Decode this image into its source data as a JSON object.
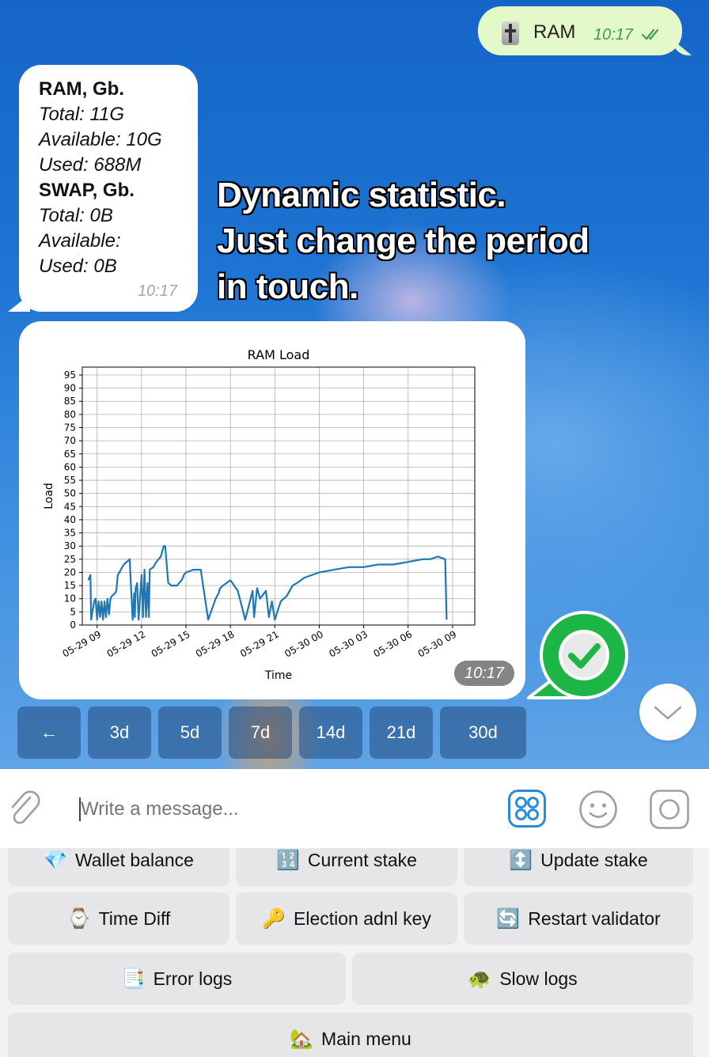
{
  "colors": {
    "accent": "#2a8cd9",
    "outgoing_bubble": "#e3f9c9",
    "read_ticks": "#3aa14a",
    "series": "#1f77b4"
  },
  "outgoing": {
    "icon": "fader-icon",
    "text": "RAM",
    "time": "10:17"
  },
  "incoming": {
    "lines": [
      {
        "text": "RAM, Gb.",
        "style": "bold"
      },
      {
        "text": "Total: 11G",
        "style": "italic"
      },
      {
        "text": "Available: 10G",
        "style": "italic"
      },
      {
        "text": "Used: 688M",
        "style": "italic"
      },
      {
        "text": "SWAP, Gb.",
        "style": "bold"
      },
      {
        "text": "Total: 0B",
        "style": "italic"
      },
      {
        "text": "Available:",
        "style": "italic"
      },
      {
        "text": "Used: 0B",
        "style": "italic"
      }
    ],
    "time": "10:17"
  },
  "overlay_caption": [
    "Dynamic statistic.",
    "Just change the period",
    "in touch."
  ],
  "image_time": "10:17",
  "chart_data": {
    "type": "line",
    "title": "RAM Load",
    "xlabel": "Time",
    "ylabel": "Load",
    "ylim": [
      0,
      98
    ],
    "yticks": [
      0,
      5,
      10,
      15,
      20,
      25,
      30,
      35,
      40,
      45,
      50,
      55,
      60,
      65,
      70,
      75,
      80,
      85,
      90,
      95
    ],
    "xticks": [
      "05-29 09",
      "05-29 12",
      "05-29 15",
      "05-29 18",
      "05-29 21",
      "05-30 00",
      "05-30 03",
      "05-30 06",
      "05-30 09"
    ],
    "xlim_hours": [
      -1,
      25.5
    ],
    "grid": true,
    "series": [
      {
        "x_hours_from_05-29_09": [
          -0.6,
          -0.45,
          -0.4,
          -0.2,
          -0.1,
          0,
          0.1,
          0.2,
          0.3,
          0.4,
          0.5,
          0.6,
          0.7,
          0.8,
          0.9,
          1.0,
          1.2,
          1.3,
          1.4,
          1.6,
          1.8,
          2.0,
          2.2,
          2.4,
          2.5,
          2.55,
          2.6,
          2.7,
          2.8,
          3.0,
          3.1,
          3.2,
          3.3,
          3.4,
          3.5,
          3.55,
          3.8,
          3.9,
          4.0,
          4.3,
          4.4,
          4.5,
          4.6,
          4.8,
          5.0,
          5.4,
          5.7,
          5.8,
          5.85,
          6.0,
          6.5,
          7.0,
          7.5,
          8.0,
          8.2,
          8.3,
          8.5,
          9.0,
          9.5,
          10.0,
          10.5,
          10.6,
          10.8,
          11.0,
          11.4,
          11.6,
          11.8,
          12.0,
          12.4,
          12.6,
          12.8,
          13.0,
          13.2,
          13.5,
          14.0,
          15.0,
          16.0,
          17.0,
          18.0,
          19.0,
          20.0,
          21.0,
          22.0,
          22.5,
          23.0,
          23.5,
          23.6
        ],
        "y": [
          17,
          19,
          2,
          9,
          10,
          2,
          9,
          3,
          9,
          2,
          9,
          3,
          10,
          4,
          10,
          11,
          12,
          13,
          19,
          21,
          23,
          24,
          25,
          2,
          12,
          3,
          14,
          16,
          2,
          19,
          3,
          21,
          3,
          16,
          3,
          21,
          22,
          23,
          24,
          26,
          28,
          30,
          30,
          16,
          15,
          15,
          17,
          18,
          19,
          20,
          21,
          21,
          2,
          10,
          12,
          14,
          15,
          17,
          13,
          2,
          13,
          3,
          14,
          10,
          13,
          3,
          9,
          2,
          9,
          10,
          11,
          13,
          15,
          16,
          18,
          20,
          21,
          22,
          22,
          23,
          23,
          24,
          25,
          25,
          26,
          25,
          2
        ]
      }
    ]
  },
  "period_buttons": [
    "←",
    "3d",
    "5d",
    "7d",
    "14d",
    "21d",
    "30d"
  ],
  "composer": {
    "placeholder": "Write a message...",
    "attach_icon": "paperclip-icon",
    "apps_icon": "apps-grid-icon",
    "emoji_icon": "smiley-icon",
    "camera_icon": "round-camera-icon"
  },
  "reply_keyboard": [
    {
      "emoji": "💎",
      "label": "Wallet balance"
    },
    {
      "emoji": "🔢",
      "label": "Current stake"
    },
    {
      "emoji": "↕️",
      "label": "Update stake"
    },
    {
      "emoji": "⌚",
      "label": "Time Diff"
    },
    {
      "emoji": "🔑",
      "label": "Election adnl key"
    },
    {
      "emoji": "🔄",
      "label": "Restart validator"
    },
    {
      "emoji": "📑",
      "label": "Error logs"
    },
    {
      "emoji": "🐢",
      "label": "Slow logs"
    },
    {
      "emoji": "🏡",
      "label": "Main menu"
    }
  ]
}
